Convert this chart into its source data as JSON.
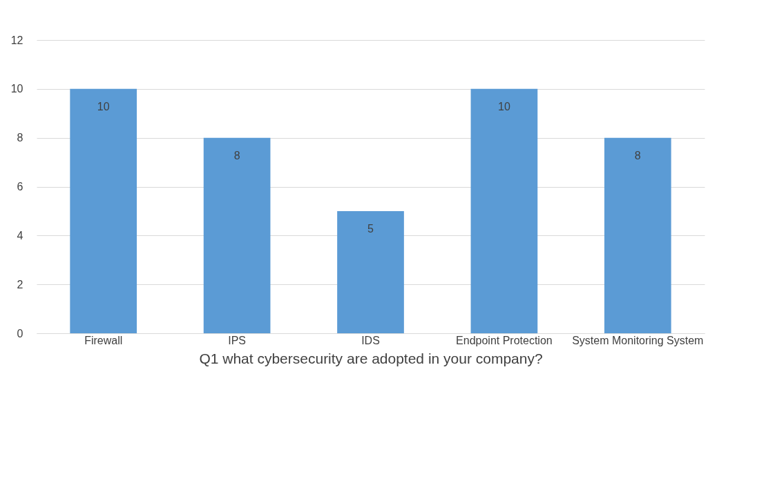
{
  "chart_data": {
    "type": "bar",
    "xlabel": "Q1 what cybersecurity are adopted in your company?",
    "categories": [
      "Firewall",
      "IPS",
      "IDS",
      "Endpoint Protection",
      "System Monitoring System"
    ],
    "values": [
      10,
      8,
      5,
      10,
      8
    ],
    "color": "#5b9bd5",
    "ylim": [
      0,
      12
    ],
    "yticks": [
      0,
      2,
      4,
      6,
      8,
      10,
      12
    ],
    "grid": "y",
    "data_labels": true
  }
}
